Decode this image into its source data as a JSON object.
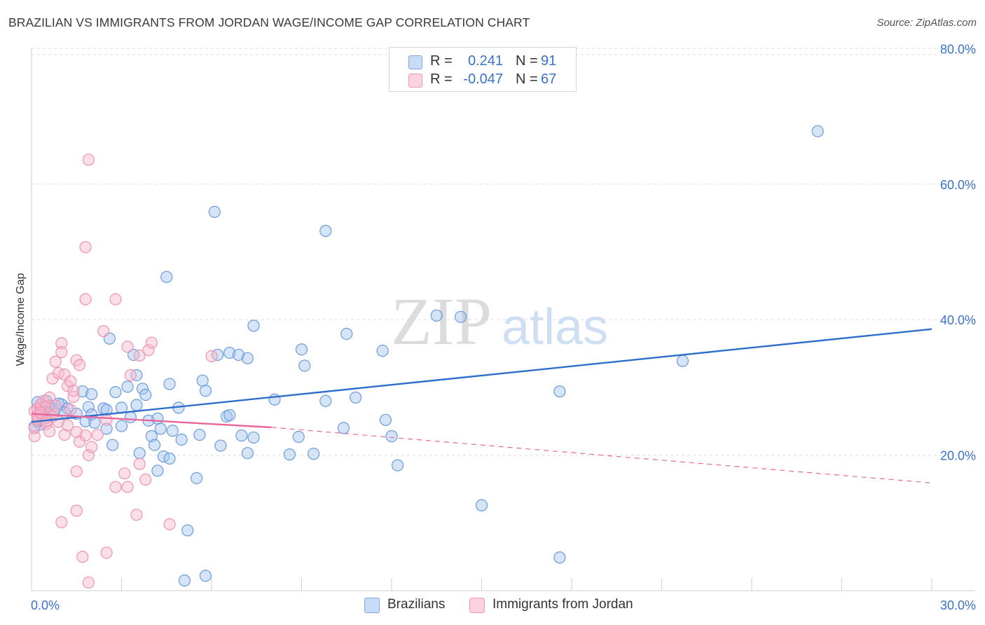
{
  "title": "BRAZILIAN VS IMMIGRANTS FROM JORDAN WAGE/INCOME GAP CORRELATION CHART",
  "source": "Source: ZipAtlas.com",
  "legend_top": {
    "rows": [
      {
        "r_label": "R =",
        "r_value": "0.241",
        "n_label": "N =",
        "n_value": "91",
        "color": "#a9c8f0"
      },
      {
        "r_label": "R =",
        "r_value": "-0.047",
        "n_label": "N =",
        "n_value": "67",
        "color": "#f6b8cb"
      }
    ]
  },
  "legend_bottom": {
    "items": [
      {
        "label": "Brazilians",
        "color": "#a9c8f0"
      },
      {
        "label": "Immigrants from Jordan",
        "color": "#f6b8cb"
      }
    ]
  },
  "watermark": {
    "zip": "ZIP",
    "atlas": "atlas"
  },
  "chart_data": {
    "type": "scatter",
    "title": "BRAZILIAN VS IMMIGRANTS FROM JORDAN WAGE/INCOME GAP CORRELATION CHART",
    "xlabel": "",
    "ylabel": "Wage/Income Gap",
    "xlim": [
      0,
      30
    ],
    "ylim": [
      0,
      82
    ],
    "x_tick_labels": [
      {
        "value": 0,
        "label": "0.0%"
      },
      {
        "value": 30,
        "label": "30.0%"
      }
    ],
    "y_tick_labels": [
      {
        "value": 20,
        "label": "20.0%"
      },
      {
        "value": 40,
        "label": "40.0%"
      },
      {
        "value": 60,
        "label": "60.0%"
      },
      {
        "value": 80,
        "label": "80.0%"
      }
    ],
    "grid": "horizontal dashed",
    "colors": {
      "brazilians": "#5a93d8",
      "jordan": "#ec7ea3",
      "blue_line": "#2f6fcc",
      "pink_line": "#e8679a"
    },
    "series": [
      {
        "name": "Brazilians",
        "points": [
          [
            0.2,
            27.8
          ],
          [
            0.3,
            27.0
          ],
          [
            0.4,
            26.5
          ],
          [
            0.5,
            28.0
          ],
          [
            0.6,
            27.3
          ],
          [
            0.8,
            26.8
          ],
          [
            1.0,
            27.5
          ],
          [
            1.2,
            26.9
          ],
          [
            0.3,
            24.5
          ],
          [
            0.5,
            25.5
          ],
          [
            1.5,
            26.1
          ],
          [
            1.7,
            29.4
          ],
          [
            1.8,
            25.0
          ],
          [
            1.9,
            27.1
          ],
          [
            2.0,
            26.0
          ],
          [
            2.0,
            29.0
          ],
          [
            2.1,
            24.8
          ],
          [
            2.4,
            26.9
          ],
          [
            2.5,
            26.7
          ],
          [
            2.5,
            23.9
          ],
          [
            2.6,
            37.2
          ],
          [
            2.7,
            21.5
          ],
          [
            2.8,
            29.3
          ],
          [
            3.0,
            27.0
          ],
          [
            3.0,
            24.3
          ],
          [
            3.2,
            30.1
          ],
          [
            3.3,
            25.6
          ],
          [
            3.4,
            34.8
          ],
          [
            3.5,
            31.8
          ],
          [
            3.5,
            27.4
          ],
          [
            3.6,
            20.3
          ],
          [
            3.7,
            29.8
          ],
          [
            3.8,
            28.9
          ],
          [
            3.9,
            25.1
          ],
          [
            4.0,
            22.8
          ],
          [
            4.1,
            21.5
          ],
          [
            4.2,
            17.7
          ],
          [
            4.2,
            25.4
          ],
          [
            4.3,
            23.9
          ],
          [
            4.4,
            19.8
          ],
          [
            4.5,
            46.3
          ],
          [
            4.6,
            19.5
          ],
          [
            4.6,
            30.5
          ],
          [
            4.7,
            23.6
          ],
          [
            4.9,
            27.0
          ],
          [
            5.0,
            22.3
          ],
          [
            5.2,
            8.9
          ],
          [
            5.1,
            1.5
          ],
          [
            5.5,
            16.6
          ],
          [
            5.6,
            23.0
          ],
          [
            5.7,
            31.0
          ],
          [
            5.8,
            29.5
          ],
          [
            5.8,
            2.2
          ],
          [
            6.1,
            55.9
          ],
          [
            6.2,
            34.8
          ],
          [
            6.3,
            21.4
          ],
          [
            6.5,
            25.7
          ],
          [
            6.6,
            25.9
          ],
          [
            6.6,
            35.1
          ],
          [
            6.9,
            34.8
          ],
          [
            7.0,
            22.9
          ],
          [
            7.2,
            34.3
          ],
          [
            7.2,
            20.3
          ],
          [
            7.4,
            22.6
          ],
          [
            7.4,
            39.1
          ],
          [
            8.1,
            28.2
          ],
          [
            8.6,
            20.1
          ],
          [
            8.9,
            22.7
          ],
          [
            9.0,
            35.6
          ],
          [
            9.1,
            33.2
          ],
          [
            9.4,
            20.2
          ],
          [
            9.8,
            28.0
          ],
          [
            9.8,
            53.1
          ],
          [
            10.4,
            24.0
          ],
          [
            10.5,
            37.9
          ],
          [
            10.8,
            28.5
          ],
          [
            11.7,
            35.4
          ],
          [
            11.8,
            25.2
          ],
          [
            12.0,
            22.8
          ],
          [
            12.2,
            18.5
          ],
          [
            13.5,
            40.6
          ],
          [
            14.3,
            40.4
          ],
          [
            15.0,
            12.6
          ],
          [
            17.6,
            29.4
          ],
          [
            17.6,
            4.9
          ],
          [
            21.7,
            33.9
          ],
          [
            26.2,
            67.8
          ],
          [
            0.1,
            24.2
          ],
          [
            0.2,
            25.0
          ],
          [
            1.1,
            26.3
          ],
          [
            0.9,
            27.6
          ]
        ]
      },
      {
        "name": "Immigrants from Jordan",
        "points": [
          [
            0.1,
            26.5
          ],
          [
            0.1,
            22.8
          ],
          [
            0.1,
            24.0
          ],
          [
            0.2,
            25.3
          ],
          [
            0.2,
            26.8
          ],
          [
            0.3,
            27.0
          ],
          [
            0.3,
            27.5
          ],
          [
            0.3,
            26.0
          ],
          [
            0.4,
            28.0
          ],
          [
            0.4,
            25.5
          ],
          [
            0.5,
            27.2
          ],
          [
            0.5,
            24.6
          ],
          [
            0.6,
            26.2
          ],
          [
            0.6,
            28.5
          ],
          [
            0.6,
            23.5
          ],
          [
            0.7,
            31.3
          ],
          [
            0.7,
            25.7
          ],
          [
            0.8,
            33.8
          ],
          [
            0.8,
            27.3
          ],
          [
            0.9,
            32.1
          ],
          [
            0.9,
            24.9
          ],
          [
            1.0,
            36.5
          ],
          [
            1.0,
            35.2
          ],
          [
            1.0,
            10.1
          ],
          [
            1.1,
            31.9
          ],
          [
            1.1,
            23.0
          ],
          [
            1.2,
            30.2
          ],
          [
            1.2,
            24.4
          ],
          [
            1.3,
            30.9
          ],
          [
            1.3,
            26.7
          ],
          [
            1.4,
            28.6
          ],
          [
            1.4,
            29.5
          ],
          [
            1.5,
            34.0
          ],
          [
            1.5,
            23.4
          ],
          [
            1.5,
            17.6
          ],
          [
            1.5,
            11.8
          ],
          [
            1.6,
            22.0
          ],
          [
            1.6,
            33.3
          ],
          [
            1.7,
            5.0
          ],
          [
            1.8,
            22.9
          ],
          [
            1.8,
            43.0
          ],
          [
            1.8,
            50.7
          ],
          [
            1.9,
            63.6
          ],
          [
            1.9,
            20.0
          ],
          [
            1.9,
            1.2
          ],
          [
            2.0,
            21.2
          ],
          [
            2.2,
            23.0
          ],
          [
            2.4,
            38.3
          ],
          [
            2.5,
            25.2
          ],
          [
            2.5,
            5.6
          ],
          [
            2.8,
            43.0
          ],
          [
            2.8,
            15.3
          ],
          [
            3.1,
            17.3
          ],
          [
            3.2,
            15.3
          ],
          [
            3.2,
            36.0
          ],
          [
            3.3,
            31.8
          ],
          [
            3.5,
            11.2
          ],
          [
            3.6,
            18.7
          ],
          [
            3.6,
            34.7
          ],
          [
            3.8,
            16.4
          ],
          [
            3.9,
            35.5
          ],
          [
            4.0,
            36.6
          ],
          [
            4.6,
            9.8
          ],
          [
            6.0,
            34.6
          ],
          [
            0.2,
            25.8
          ],
          [
            0.5,
            25.0
          ],
          [
            0.3,
            26.3
          ]
        ]
      }
    ],
    "trend_lines": [
      {
        "series": "Brazilians",
        "x": [
          0,
          30
        ],
        "y": [
          24.9,
          38.6
        ],
        "style": "solid"
      },
      {
        "series": "Immigrants from Jordan",
        "x": [
          0,
          8
        ],
        "y": [
          26.1,
          24.1
        ],
        "style": "solid"
      },
      {
        "series": "Immigrants from Jordan",
        "x": [
          8,
          30
        ],
        "y": [
          24.1,
          15.9
        ],
        "style": "dashed"
      }
    ]
  }
}
